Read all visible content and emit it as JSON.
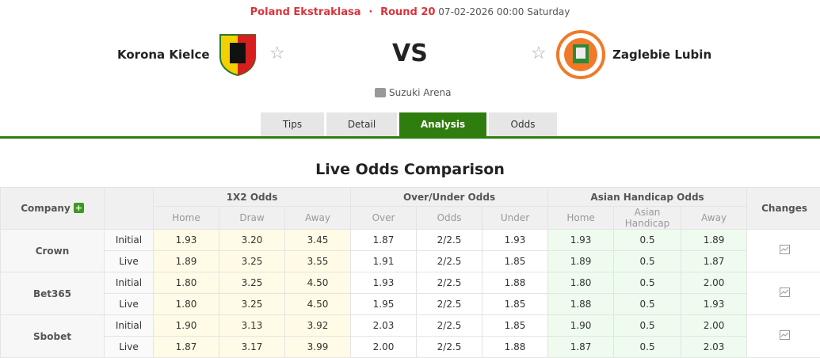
{
  "header": {
    "league": "Poland Ekstraklasa",
    "separator": "·",
    "round": "Round 20",
    "datetime": "07-02-2026 00:00 Saturday",
    "home": "Korona Kielce",
    "away": "Zaglebie Lubin",
    "vs": "VS",
    "venue": "Suzuki Arena"
  },
  "tabs": [
    {
      "label": "Tips"
    },
    {
      "label": "Detail"
    },
    {
      "label": "Analysis",
      "active": true
    },
    {
      "label": "Odds"
    }
  ],
  "colors": {
    "accent": "#2f7d0e",
    "league": "#d9343b"
  },
  "section_title": "Live Odds Comparison",
  "table": {
    "company_header": "Company",
    "changes_header": "Changes",
    "groups": [
      "1X2 Odds",
      "Over/Under Odds",
      "Asian Handicap Odds"
    ],
    "subheaders": [
      "Home",
      "Draw",
      "Away",
      "Over",
      "Odds",
      "Under",
      "Home",
      "Asian Handicap",
      "Away"
    ],
    "rows": [
      {
        "company": "Crown",
        "lines": [
          {
            "type": "Initial",
            "v": [
              "1.93",
              "3.20",
              "3.45",
              "1.87",
              "2/2.5",
              "1.93",
              "1.93",
              "0.5",
              "1.89"
            ]
          },
          {
            "type": "Live",
            "v": [
              "1.89",
              "3.25",
              "3.55",
              "1.91",
              "2/2.5",
              "1.85",
              "1.89",
              "0.5",
              "1.87"
            ]
          }
        ]
      },
      {
        "company": "Bet365",
        "lines": [
          {
            "type": "Initial",
            "v": [
              "1.80",
              "3.25",
              "4.50",
              "1.93",
              "2/2.5",
              "1.88",
              "1.80",
              "0.5",
              "2.00"
            ]
          },
          {
            "type": "Live",
            "v": [
              "1.80",
              "3.25",
              "4.50",
              "1.95",
              "2/2.5",
              "1.85",
              "1.88",
              "0.5",
              "1.93"
            ]
          }
        ]
      },
      {
        "company": "Sbobet",
        "lines": [
          {
            "type": "Initial",
            "v": [
              "1.90",
              "3.13",
              "3.92",
              "2.03",
              "2/2.5",
              "1.85",
              "1.90",
              "0.5",
              "2.00"
            ]
          },
          {
            "type": "Live",
            "v": [
              "1.87",
              "3.17",
              "3.99",
              "2.00",
              "2/2.5",
              "1.88",
              "1.87",
              "0.5",
              "2.03"
            ]
          }
        ]
      }
    ]
  }
}
